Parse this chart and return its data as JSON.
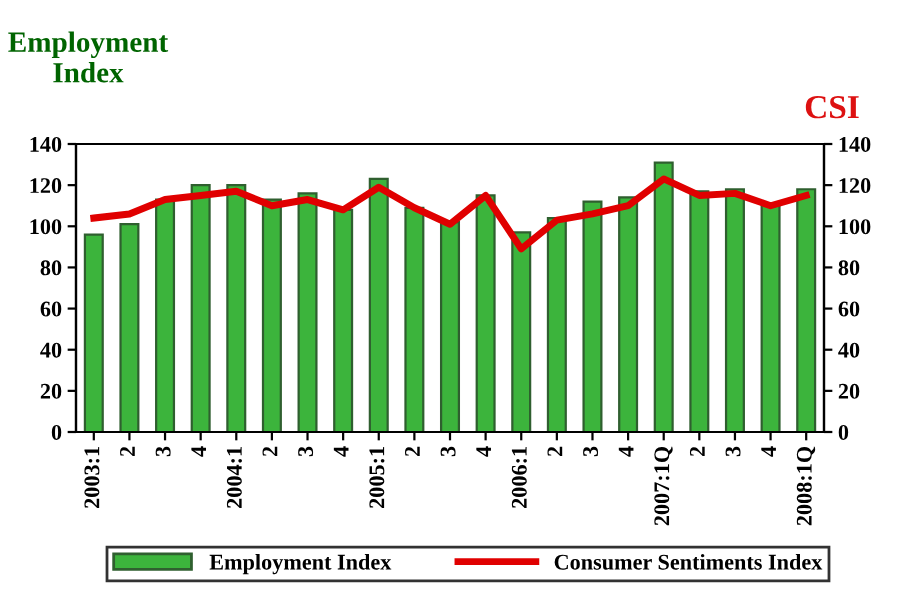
{
  "chart_data": {
    "type": "bar",
    "ylabel": "Employment\nIndex",
    "y2label": "CSI",
    "categories": [
      "2003:1",
      "2",
      "3",
      "4",
      "2004:1",
      "2",
      "3",
      "4",
      "2005:1",
      "2",
      "3",
      "4",
      "2006:1",
      "2",
      "3",
      "4",
      "2007:1Q",
      "2",
      "3",
      "4",
      "2008:1Q"
    ],
    "series": [
      {
        "name": "Employment Index",
        "color": "#3cb43c",
        "values": [
          96,
          101,
          113,
          120,
          120,
          113,
          116,
          108,
          123,
          109,
          102,
          115,
          97,
          104,
          112,
          114,
          131,
          117,
          118,
          111,
          118
        ]
      },
      {
        "name": "Consumer Sentiments Index",
        "type": "line",
        "axis": "y2",
        "color": "#e00000",
        "values": [
          104,
          106,
          113,
          115,
          117,
          110,
          113,
          108,
          119,
          109,
          101,
          115,
          89,
          103,
          106,
          110,
          123,
          115,
          116,
          110,
          115
        ]
      }
    ],
    "ylim": [
      0,
      140
    ],
    "yticks": [
      0,
      20,
      40,
      60,
      80,
      100,
      120,
      140
    ],
    "y2lim": [
      0,
      140
    ],
    "y2ticks": [
      0,
      20,
      40,
      60,
      80,
      100,
      120,
      140
    ],
    "grid": false,
    "legend": "bottom",
    "marker": "none",
    "line_style": "solid"
  }
}
